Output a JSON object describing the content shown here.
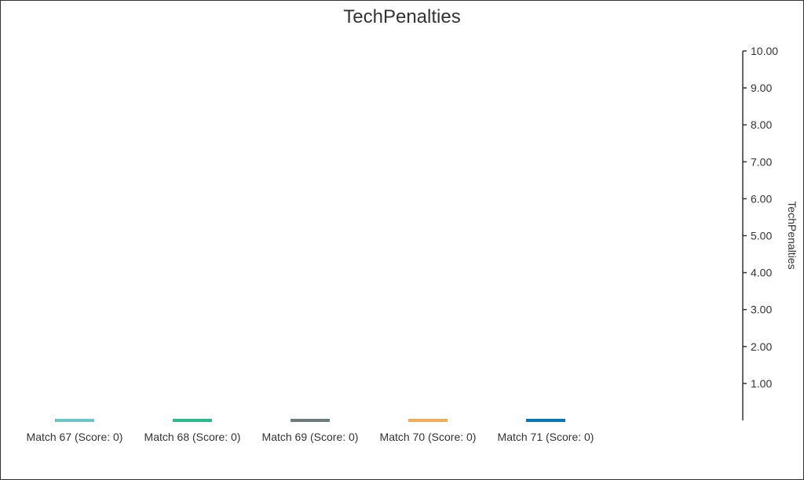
{
  "chart_data": {
    "type": "bar",
    "title": "TechPenalties",
    "ylabel": "TechPenalties",
    "xlabel": "",
    "y_axis_side": "right",
    "ylim": [
      0,
      10
    ],
    "yticks": [
      "1.00",
      "2.00",
      "3.00",
      "4.00",
      "5.00",
      "6.00",
      "7.00",
      "8.00",
      "9.00",
      "10.00"
    ],
    "ytick_values": [
      1,
      2,
      3,
      4,
      5,
      6,
      7,
      8,
      9,
      10
    ],
    "grid": false,
    "legend_position": "bottom",
    "series": [
      {
        "name": "Match 67 (Score: 0)",
        "values": [
          0
        ],
        "color": "#6cc3c6"
      },
      {
        "name": "Match 68 (Score: 0)",
        "values": [
          0
        ],
        "color": "#2db88a"
      },
      {
        "name": "Match 69 (Score: 0)",
        "values": [
          0
        ],
        "color": "#6b7b82"
      },
      {
        "name": "Match 70 (Score: 0)",
        "values": [
          0
        ],
        "color": "#f0ad55"
      },
      {
        "name": "Match 71 (Score: 0)",
        "values": [
          0
        ],
        "color": "#0b72bd"
      }
    ]
  }
}
